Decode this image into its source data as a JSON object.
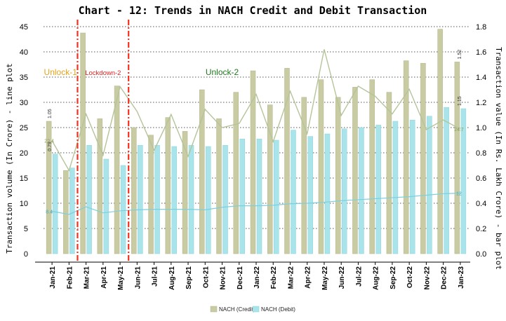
{
  "chart_data": {
    "type": "bar",
    "title": "Chart - 12: Trends in NACH Credit and Debit Transaction",
    "ylabel_left": "Transaction volume (In Crore) - line plot",
    "ylabel_right": "Transaction value (In Rs. Lakh Crore) - bar plot",
    "ylim_left": [
      0,
      45
    ],
    "yticks_left": [
      "0",
      "5",
      "10",
      "15",
      "20",
      "25",
      "30",
      "35",
      "40",
      "45"
    ],
    "ylim_right": [
      0,
      1.8
    ],
    "yticks_right": [
      "0.0",
      "0.2",
      "0.4",
      "0.6",
      "0.8",
      "1.0",
      "1.2",
      "1.4",
      "1.6",
      "1.8"
    ],
    "categories": [
      "Jan-21",
      "Feb-21",
      "Mar-21",
      "Apr-21",
      "May-21",
      "Jun-21",
      "Jul-21",
      "Aug-21",
      "Sep-21",
      "Oct-21",
      "Nov-21",
      "Dec-21",
      "Jan-22",
      "Feb-22",
      "Mar-22",
      "Apr-22",
      "May-22",
      "Jun-22",
      "Jul-22",
      "Aug-22",
      "Sep-22",
      "Oct-22",
      "Nov-22",
      "Dec-22",
      "Jan-23"
    ],
    "bar_series": [
      {
        "name": "NACH (Credit)",
        "color": "#c9cba3",
        "values": [
          1.05,
          0.66,
          1.75,
          1.07,
          1.33,
          1.0,
          0.94,
          1.08,
          0.97,
          1.3,
          1.07,
          1.28,
          1.45,
          1.18,
          1.47,
          1.24,
          1.38,
          1.24,
          1.32,
          1.38,
          1.28,
          1.53,
          1.51,
          1.78,
          1.52
        ]
      },
      {
        "name": "NACH (Debit)",
        "color": "#a8e4ea",
        "values": [
          0.79,
          0.68,
          0.86,
          0.75,
          0.7,
          0.86,
          0.86,
          0.85,
          0.86,
          0.85,
          0.86,
          0.91,
          0.91,
          0.9,
          0.98,
          0.93,
          0.95,
          0.99,
          1.0,
          1.02,
          1.05,
          1.06,
          1.09,
          1.16,
          1.15
        ]
      }
    ],
    "line_series": [
      {
        "name": "NACH (Credit) volume",
        "color": "#b5c49a",
        "values": [
          22.4,
          16.5,
          27.7,
          19.5,
          33.1,
          28.2,
          20.5,
          27.6,
          19.3,
          28.6,
          25.0,
          25.8,
          31.6,
          22.2,
          32.2,
          23.8,
          40.5,
          27.4,
          33.2,
          31.2,
          27.7,
          32.6,
          24.6,
          26.5,
          24.7
        ]
      },
      {
        "name": "NACH (Debit) volume",
        "color": "#7ecfdc",
        "values": [
          8.4,
          7.8,
          9.3,
          8.1,
          8.5,
          8.7,
          8.8,
          8.8,
          8.8,
          8.7,
          9.2,
          9.5,
          9.5,
          9.6,
          9.9,
          10.0,
          10.2,
          10.5,
          10.7,
          10.9,
          11.1,
          11.3,
          11.6,
          11.9,
          12.0
        ]
      }
    ],
    "data_labels": [
      {
        "text": "1.05",
        "index": 0,
        "value": 1.05,
        "axis": "right",
        "color": "#333333"
      },
      {
        "text": "22.4",
        "index": 0,
        "value": 22.4,
        "axis": "left",
        "color": "#8a9a58"
      },
      {
        "text": "0.79",
        "index": 0,
        "value": 0.79,
        "axis": "right",
        "color": "#333333"
      },
      {
        "text": "8.4",
        "index": 0,
        "value": 8.4,
        "axis": "left",
        "color": "#3aa9bd"
      },
      {
        "text": "1.52",
        "index": 24,
        "value": 1.52,
        "axis": "right",
        "color": "#333333"
      },
      {
        "text": "1.15",
        "index": 24,
        "value": 1.15,
        "axis": "right",
        "color": "#333333"
      },
      {
        "text": "24.7",
        "index": 24,
        "value": 24.7,
        "axis": "left",
        "color": "#8a9a58"
      },
      {
        "text": "12",
        "index": 24,
        "value": 12.0,
        "axis": "left",
        "color": "#3aa9bd"
      }
    ],
    "phases": [
      {
        "text": "Unlock-1",
        "color": "#e8a317"
      },
      {
        "text": "Lockdown-2",
        "color": "#e02020"
      },
      {
        "text": "Unlock-2",
        "color": "#1d7a1d"
      }
    ],
    "phase_lines": [
      {
        "after_index": 1,
        "color": "#ee3322"
      },
      {
        "after_index": 4,
        "color": "#ee3322"
      }
    ],
    "legend": [
      {
        "text": "NACH (Credit)",
        "color": "#c9cba3"
      },
      {
        "text": "NACH (Debit)",
        "color": "#a8e4ea"
      }
    ],
    "legend_position": "bottom",
    "grid": true
  }
}
